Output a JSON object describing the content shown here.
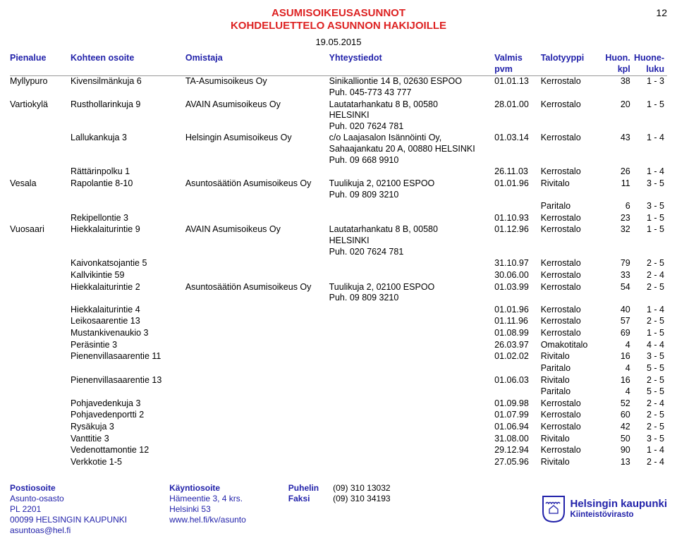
{
  "title1": "ASUMISOIKEUSASUNNOT",
  "title2": "KOHDELUETTELO ASUNNON HAKIJOILLE",
  "page_number": "12",
  "date": "19.05.2015",
  "headers": {
    "pienalue": "Pienalue",
    "kohteen_osoite": "Kohteen osoite",
    "omistaja": "Omistaja",
    "yhteystiedot": "Yhteystiedot",
    "valmis": "Valmis",
    "pvm": "pvm",
    "talotyyppi": "Talotyyppi",
    "huon": "Huon.",
    "kpl": "kpl",
    "huone": "Huone-",
    "luku": "luku"
  },
  "rows": [
    {
      "pienalue": "Myllypuro",
      "osoite": "Kivensilmänkuja 6",
      "omistaja": "TA-Asumisoikeus Oy",
      "yhteys": "Sinikalliontie 14 B, 02630 ESPOO\nPuh. 045-773 43 777",
      "valmis": "01.01.13",
      "tyyppi": "Kerrostalo",
      "kpl": "38",
      "luku": "1 - 3"
    },
    {
      "pienalue": "Vartiokylä",
      "osoite": "Rusthollarinkuja 9",
      "omistaja": "AVAIN Asumisoikeus Oy",
      "yhteys": "Lautatarhankatu 8 B, 00580\nHELSINKI\nPuh. 020 7624 781",
      "valmis": "28.01.00",
      "tyyppi": "Kerrostalo",
      "kpl": "20",
      "luku": "1 - 5"
    },
    {
      "pienalue": "",
      "osoite": "Lallukankuja 3",
      "omistaja": "Helsingin Asumisoikeus Oy",
      "yhteys": "c/o Laajasalon Isännöinti Oy,\nSahaajankatu 20 A, 00880 HELSINKI\nPuh. 09 668 9910",
      "valmis": "01.03.14",
      "tyyppi": "Kerrostalo",
      "kpl": "43",
      "luku": "1 - 4"
    },
    {
      "pienalue": "",
      "osoite": "Rättärinpolku 1",
      "omistaja": "",
      "yhteys": "",
      "valmis": "26.11.03",
      "tyyppi": "Kerrostalo",
      "kpl": "26",
      "luku": "1 - 4"
    },
    {
      "pienalue": "Vesala",
      "osoite": "Rapolantie 8-10",
      "omistaja": "Asuntosäätiön Asumisoikeus Oy",
      "yhteys": "Tuulikuja 2, 02100 ESPOO\nPuh. 09 809 3210",
      "valmis": "01.01.96",
      "tyyppi": "Rivitalo",
      "kpl": "11",
      "luku": "3 - 5"
    },
    {
      "pienalue": "",
      "osoite": "",
      "omistaja": "",
      "yhteys": "",
      "valmis": "",
      "tyyppi": "Paritalo",
      "kpl": "6",
      "luku": "3 - 5"
    },
    {
      "pienalue": "",
      "osoite": "Rekipellontie 3",
      "omistaja": "",
      "yhteys": "",
      "valmis": "01.10.93",
      "tyyppi": "Kerrostalo",
      "kpl": "23",
      "luku": "1 - 5"
    },
    {
      "pienalue": "Vuosaari",
      "osoite": "Hiekkalaiturintie 9",
      "omistaja": "AVAIN Asumisoikeus Oy",
      "yhteys": "Lautatarhankatu 8 B, 00580\nHELSINKI\nPuh. 020 7624 781",
      "valmis": "01.12.96",
      "tyyppi": "Kerrostalo",
      "kpl": "32",
      "luku": "1 - 5"
    },
    {
      "pienalue": "",
      "osoite": "Kaivonkatsojantie 5",
      "omistaja": "",
      "yhteys": "",
      "valmis": "31.10.97",
      "tyyppi": "Kerrostalo",
      "kpl": "79",
      "luku": "2 - 5"
    },
    {
      "pienalue": "",
      "osoite": "Kallvikintie 59",
      "omistaja": "",
      "yhteys": "",
      "valmis": "30.06.00",
      "tyyppi": "Kerrostalo",
      "kpl": "33",
      "luku": "2 - 4"
    },
    {
      "pienalue": "",
      "osoite": "Hiekkalaiturintie 2",
      "omistaja": "Asuntosäätiön Asumisoikeus Oy",
      "yhteys": "Tuulikuja 2, 02100 ESPOO\nPuh. 09 809 3210",
      "valmis": "01.03.99",
      "tyyppi": "Kerrostalo",
      "kpl": "54",
      "luku": "2 - 5"
    },
    {
      "pienalue": "",
      "osoite": "Hiekkalaiturintie 4",
      "omistaja": "",
      "yhteys": "",
      "valmis": "01.01.96",
      "tyyppi": "Kerrostalo",
      "kpl": "40",
      "luku": "1 - 4"
    },
    {
      "pienalue": "",
      "osoite": "Leikosaarentie 13",
      "omistaja": "",
      "yhteys": "",
      "valmis": "01.11.96",
      "tyyppi": "Kerrostalo",
      "kpl": "57",
      "luku": "2 - 5"
    },
    {
      "pienalue": "",
      "osoite": "Mustankivenaukio 3",
      "omistaja": "",
      "yhteys": "",
      "valmis": "01.08.99",
      "tyyppi": "Kerrostalo",
      "kpl": "69",
      "luku": "1 - 5"
    },
    {
      "pienalue": "",
      "osoite": "Peräsintie 3",
      "omistaja": "",
      "yhteys": "",
      "valmis": "26.03.97",
      "tyyppi": "Omakotitalo",
      "kpl": "4",
      "luku": "4 - 4"
    },
    {
      "pienalue": "",
      "osoite": "Pienenvillasaarentie 11",
      "omistaja": "",
      "yhteys": "",
      "valmis": "01.02.02",
      "tyyppi": "Rivitalo",
      "kpl": "16",
      "luku": "3 - 5"
    },
    {
      "pienalue": "",
      "osoite": "",
      "omistaja": "",
      "yhteys": "",
      "valmis": "",
      "tyyppi": "Paritalo",
      "kpl": "4",
      "luku": "5 - 5"
    },
    {
      "pienalue": "",
      "osoite": "Pienenvillasaarentie 13",
      "omistaja": "",
      "yhteys": "",
      "valmis": "01.06.03",
      "tyyppi": "Rivitalo",
      "kpl": "16",
      "luku": "2 - 5"
    },
    {
      "pienalue": "",
      "osoite": "",
      "omistaja": "",
      "yhteys": "",
      "valmis": "",
      "tyyppi": "Paritalo",
      "kpl": "4",
      "luku": "5 - 5"
    },
    {
      "pienalue": "",
      "osoite": "Pohjavedenkuja 3",
      "omistaja": "",
      "yhteys": "",
      "valmis": "01.09.98",
      "tyyppi": "Kerrostalo",
      "kpl": "52",
      "luku": "2 - 4"
    },
    {
      "pienalue": "",
      "osoite": "Pohjavedenportti 2",
      "omistaja": "",
      "yhteys": "",
      "valmis": "01.07.99",
      "tyyppi": "Kerrostalo",
      "kpl": "60",
      "luku": "2 - 5"
    },
    {
      "pienalue": "",
      "osoite": "Rysäkuja 3",
      "omistaja": "",
      "yhteys": "",
      "valmis": "01.06.94",
      "tyyppi": "Kerrostalo",
      "kpl": "42",
      "luku": "2 - 5"
    },
    {
      "pienalue": "",
      "osoite": "Vanttitie 3",
      "omistaja": "",
      "yhteys": "",
      "valmis": "31.08.00",
      "tyyppi": "Rivitalo",
      "kpl": "50",
      "luku": "3 - 5"
    },
    {
      "pienalue": "",
      "osoite": "Vedenottamontie 12",
      "omistaja": "",
      "yhteys": "",
      "valmis": "29.12.94",
      "tyyppi": "Kerrostalo",
      "kpl": "90",
      "luku": "1 - 4"
    },
    {
      "pienalue": "",
      "osoite": "Verkkotie 1-5",
      "omistaja": "",
      "yhteys": "",
      "valmis": "27.05.96",
      "tyyppi": "Rivitalo",
      "kpl": "13",
      "luku": "2 - 4"
    }
  ],
  "footer": {
    "post_label": "Postiosoite",
    "post_lines": [
      "Asunto-osasto",
      "PL 2201",
      "00099 HELSINGIN KAUPUNKI",
      "asuntoas@hel.fi"
    ],
    "visit_label": "Käyntiosoite",
    "visit_lines": [
      "Hämeentie 3, 4 krs.",
      "Helsinki 53",
      "www.hel.fi/kv/asunto"
    ],
    "phone_label": "Puhelin",
    "phone_value": "(09) 310 13032",
    "fax_label": "Faksi",
    "fax_value": "(09) 310 34193",
    "logo_big": "Helsingin kaupunki",
    "logo_small": "Kiinteistövirasto"
  }
}
